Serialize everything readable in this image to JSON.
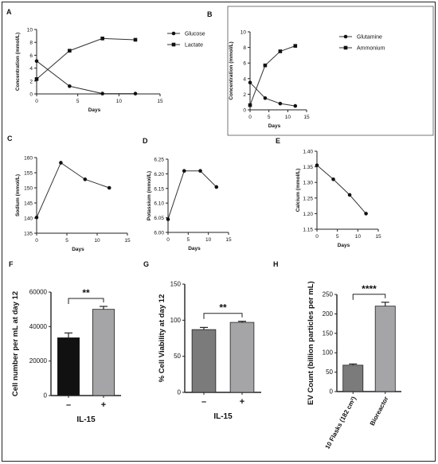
{
  "chart_data": [
    {
      "panel": "A",
      "type": "line",
      "xlabel": "Days",
      "ylabel": "Concentration (mmol/L)",
      "xlim": [
        0,
        15
      ],
      "ylim": [
        0,
        10
      ],
      "xticks": [
        "0",
        "5",
        "10",
        "15"
      ],
      "yticks": [
        "0",
        "2",
        "4",
        "6",
        "8",
        "10"
      ],
      "legend_position": "right",
      "series": [
        {
          "name": "Glucose",
          "marker": "circle",
          "x": [
            0,
            4,
            8,
            12
          ],
          "y": [
            5.1,
            1.2,
            0.05,
            0.05
          ]
        },
        {
          "name": "Lactate",
          "marker": "square",
          "x": [
            0,
            4,
            8,
            12
          ],
          "y": [
            2.3,
            6.7,
            8.6,
            8.4
          ]
        }
      ]
    },
    {
      "panel": "B",
      "type": "line",
      "xlabel": "Days",
      "ylabel": "Concentration (mmol/L)",
      "xlim": [
        0,
        15
      ],
      "ylim": [
        0,
        10
      ],
      "xticks": [
        "0",
        "5",
        "10",
        "15"
      ],
      "yticks": [
        "0",
        "2",
        "4",
        "6",
        "8",
        "10"
      ],
      "legend_position": "right",
      "series": [
        {
          "name": "Glutamine",
          "marker": "circle",
          "x": [
            0,
            4,
            8,
            12
          ],
          "y": [
            3.5,
            1.5,
            0.8,
            0.5
          ]
        },
        {
          "name": "Ammonium",
          "marker": "square",
          "x": [
            0,
            4,
            8,
            12
          ],
          "y": [
            0.6,
            5.7,
            7.5,
            8.2
          ]
        }
      ]
    },
    {
      "panel": "C",
      "type": "line",
      "xlabel": "Days",
      "ylabel": "Sodium (mmol/L)",
      "xlim": [
        0,
        15
      ],
      "ylim": [
        135,
        160
      ],
      "xticks": [
        "0",
        "5",
        "10",
        "15"
      ],
      "yticks": [
        "135",
        "140",
        "145",
        "150",
        "155",
        "160"
      ],
      "series": [
        {
          "x": [
            0,
            4,
            8,
            12
          ],
          "y": [
            140.2,
            158.3,
            152.8,
            150.0
          ]
        }
      ]
    },
    {
      "panel": "D",
      "type": "line",
      "xlabel": "Days",
      "ylabel": "Potassium (mmol/L)",
      "xlim": [
        0,
        15
      ],
      "ylim": [
        6.0,
        6.25
      ],
      "xticks": [
        "0",
        "5",
        "10",
        "15"
      ],
      "yticks": [
        "6.00",
        "6.05",
        "6.10",
        "6.15",
        "6.20",
        "6.25"
      ],
      "series": [
        {
          "x": [
            0,
            4,
            8,
            12
          ],
          "y": [
            6.045,
            6.21,
            6.21,
            6.155
          ]
        }
      ]
    },
    {
      "panel": "E",
      "type": "line",
      "xlabel": "Days",
      "ylabel": "Calcium (mmol/L)",
      "xlim": [
        0,
        15
      ],
      "ylim": [
        1.15,
        1.4
      ],
      "xticks": [
        "0",
        "5",
        "10",
        "15"
      ],
      "yticks": [
        "1.15",
        "1.20",
        "1.25",
        "1.30",
        "1.35",
        "1.40"
      ],
      "series": [
        {
          "x": [
            0,
            4,
            8,
            12
          ],
          "y": [
            1.355,
            1.31,
            1.26,
            1.2
          ]
        }
      ]
    },
    {
      "panel": "F",
      "type": "bar",
      "xlabel": "IL-15",
      "ylabel": "Cell number per mL at day 12",
      "ylim": [
        0,
        60000
      ],
      "yticks": [
        "0",
        "20000",
        "40000",
        "60000"
      ],
      "categories": [
        "–",
        "+"
      ],
      "values": [
        33500,
        50000
      ],
      "errors": [
        2800,
        1700
      ],
      "bar_colors": [
        "#111111",
        "#a5a5a8"
      ],
      "significance": "**"
    },
    {
      "panel": "G",
      "type": "bar",
      "xlabel": "IL-15",
      "ylabel": "% Cell Viability at day 12",
      "ylim": [
        0,
        150
      ],
      "yticks": [
        "0",
        "50",
        "100",
        "150"
      ],
      "categories": [
        "–",
        "+"
      ],
      "values": [
        87,
        97
      ],
      "errors": [
        3,
        1.5
      ],
      "bar_colors": [
        "#7b7b7b",
        "#a5a5a8"
      ],
      "significance": "**"
    },
    {
      "panel": "H",
      "type": "bar",
      "xlabel": "",
      "ylabel": "EV Count (billion particles per mL)",
      "ylim": [
        0,
        250
      ],
      "yticks": [
        "0",
        "50",
        "100",
        "150",
        "200",
        "250"
      ],
      "categories": [
        "10 Flasks (182 cm²)",
        "Bioreactor"
      ],
      "values": [
        68,
        220
      ],
      "errors": [
        3,
        10
      ],
      "bar_colors": [
        "#7b7b7b",
        "#a5a5a8"
      ],
      "significance": "****"
    }
  ]
}
